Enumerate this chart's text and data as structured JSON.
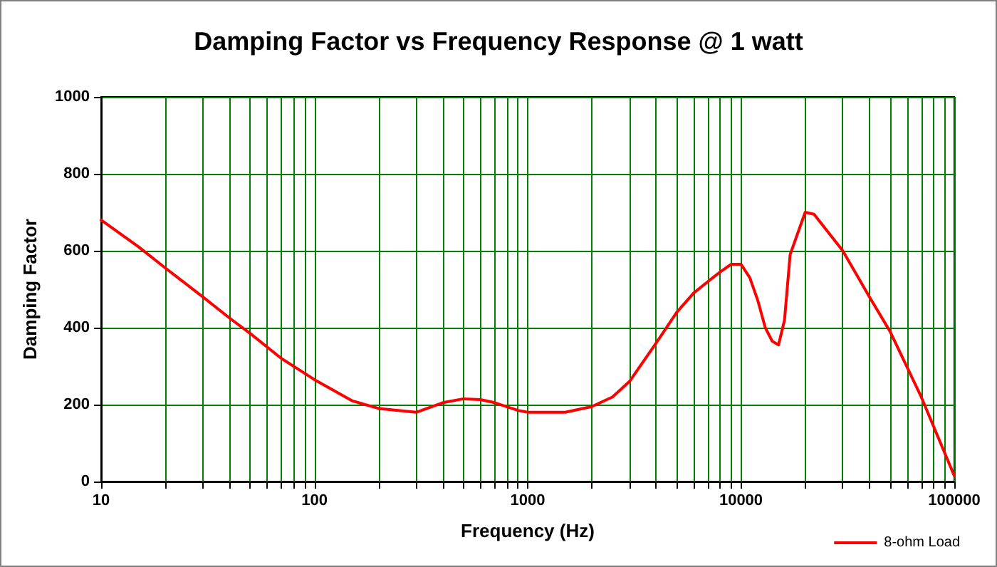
{
  "chart_data": {
    "type": "line",
    "title": "Damping Factor vs Frequency Response @ 1 watt",
    "xlabel": "Frequency (Hz)",
    "ylabel": "Damping Factor",
    "x": [
      10,
      15,
      20,
      30,
      40,
      50,
      70,
      100,
      150,
      200,
      300,
      400,
      500,
      600,
      700,
      900,
      1000,
      1500,
      2000,
      2500,
      3000,
      4000,
      5000,
      6000,
      7000,
      8000,
      9000,
      10000,
      11000,
      12000,
      13000,
      14000,
      15000,
      16000,
      17000,
      20000,
      22000,
      30000,
      40000,
      50000,
      70000,
      100000
    ],
    "series": [
      {
        "name": "8-ohm Load",
        "color": "#ff0000",
        "values": [
          680,
          610,
          555,
          480,
          425,
          385,
          320,
          265,
          210,
          190,
          180,
          205,
          215,
          213,
          205,
          185,
          180,
          180,
          195,
          220,
          260,
          360,
          440,
          490,
          520,
          545,
          565,
          565,
          530,
          470,
          400,
          365,
          355,
          420,
          590,
          700,
          695,
          600,
          480,
          390,
          220,
          15
        ]
      }
    ],
    "log": "x",
    "xlim": [
      10,
      100000
    ],
    "xticks": [
      10,
      {
        "value": 20,
        "label": null
      },
      {
        "value": 30,
        "label": null
      },
      {
        "value": 40,
        "label": null
      },
      {
        "value": 50,
        "label": null
      },
      {
        "value": 60,
        "label": null
      },
      {
        "value": 70,
        "label": null
      },
      {
        "value": 80,
        "label": null
      },
      {
        "value": 90,
        "label": null
      },
      100,
      {
        "value": 200,
        "label": null
      },
      {
        "value": 300,
        "label": null
      },
      {
        "value": 400,
        "label": null
      },
      {
        "value": 500,
        "label": null
      },
      {
        "value": 600,
        "label": null
      },
      {
        "value": 700,
        "label": null
      },
      {
        "value": 800,
        "label": null
      },
      {
        "value": 900,
        "label": null
      },
      1000,
      {
        "value": 2000,
        "label": null
      },
      {
        "value": 3000,
        "label": null
      },
      {
        "value": 4000,
        "label": null
      },
      {
        "value": 5000,
        "label": null
      },
      {
        "value": 6000,
        "label": null
      },
      {
        "value": 7000,
        "label": null
      },
      {
        "value": 8000,
        "label": null
      },
      {
        "value": 9000,
        "label": null
      },
      10000,
      {
        "value": 20000,
        "label": null
      },
      {
        "value": 30000,
        "label": null
      },
      {
        "value": 40000,
        "label": null
      },
      {
        "value": 50000,
        "label": null
      },
      {
        "value": 60000,
        "label": null
      },
      {
        "value": 70000,
        "label": null
      },
      {
        "value": 80000,
        "label": null
      },
      {
        "value": 90000,
        "label": null
      },
      100000
    ],
    "ylim": [
      0,
      1000
    ],
    "yticks": [
      0,
      200,
      400,
      600,
      800,
      1000
    ],
    "grid": true,
    "legend": "bottom right",
    "marker": "none",
    "line_style": "solid"
  }
}
